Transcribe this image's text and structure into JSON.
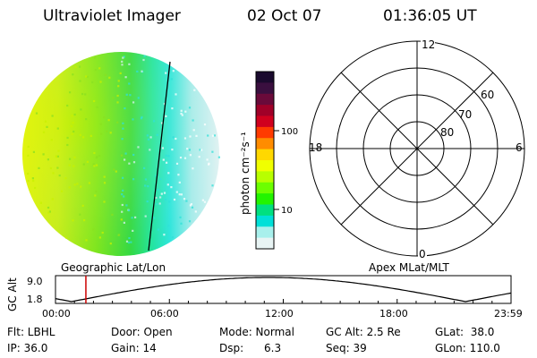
{
  "header": {
    "instrument": "Ultraviolet Imager",
    "date": "02 Oct 07",
    "time": "01:36:05 UT"
  },
  "colorbar": {
    "label": "photon cm⁻²s⁻¹",
    "ticks": [
      "100",
      "10"
    ],
    "colors": [
      "#1a0a2e",
      "#3a0f3f",
      "#6a0a3a",
      "#a00028",
      "#d0001e",
      "#ff3a00",
      "#ff8c00",
      "#ffd800",
      "#f0ff00",
      "#b8ff00",
      "#6cff00",
      "#22f400",
      "#00e080",
      "#00e0d8",
      "#a8f0ec",
      "#e8f4f4"
    ]
  },
  "polar": {
    "mlt_labels": {
      "top": "12",
      "left": "18",
      "right": "6",
      "bottom": "0"
    },
    "lat_labels": [
      "60",
      "70",
      "80"
    ]
  },
  "captions": {
    "left": "Geographic Lat/Lon",
    "right": "Apex MLat/MLT"
  },
  "altitude_plot": {
    "ylabel": "GC Alt",
    "yticks": [
      "9.0",
      "1.8"
    ],
    "xticks": [
      "00:00",
      "06:00",
      "12:00",
      "18:00",
      "23:59"
    ],
    "current_time_fraction": 0.0667,
    "marker_color": "#cc0000"
  },
  "info": {
    "flt": "Flt: LBHL",
    "ip": "IP: 36.0",
    "door": "Door: Open",
    "gain": "Gain: 14",
    "mode": "Mode: Normal",
    "dsp": "Dsp:      6.3",
    "gcalt": "GC Alt: 2.5 Re",
    "seq": "Seq: 39",
    "glat": "GLat:  38.0",
    "glon": "GLon: 110.0"
  }
}
